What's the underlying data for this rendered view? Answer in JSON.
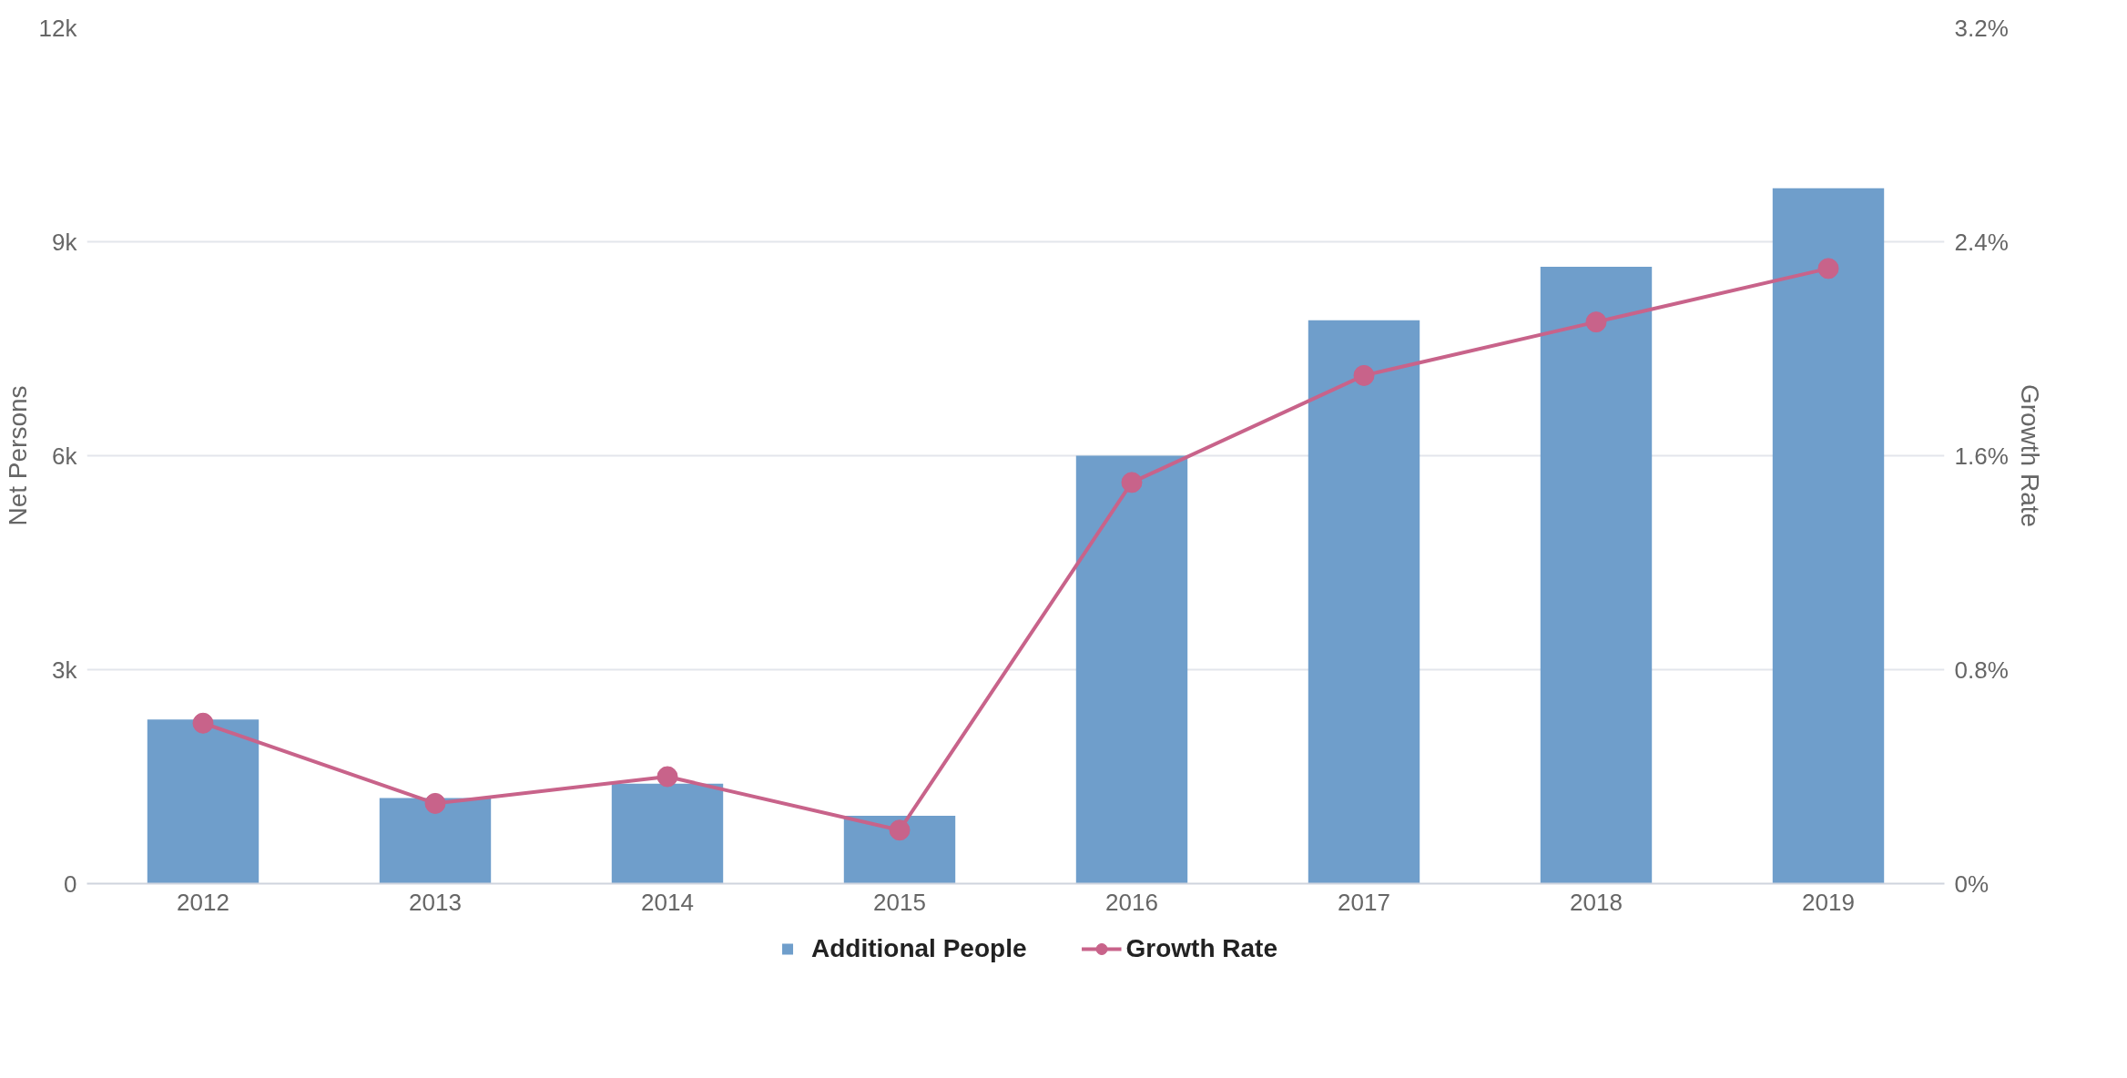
{
  "chart_data": {
    "type": "bar",
    "categories": [
      "2012",
      "2013",
      "2014",
      "2015",
      "2016",
      "2017",
      "2018",
      "2019"
    ],
    "ylabel": "Net Persons",
    "y2label": "Growth Rate",
    "series": [
      {
        "name": "Additional People",
        "color": "#6f9ecb",
        "values": [
          2300,
          1200,
          1400,
          950,
          6000,
          7900,
          8650,
          9750
        ]
      },
      {
        "name": "Growth Rate",
        "type": "line",
        "axis": "y2",
        "color": "#c8638a",
        "marker": "circle",
        "values": [
          0.6,
          0.3,
          0.4,
          0.2,
          1.5,
          1.9,
          2.1,
          2.3
        ]
      }
    ],
    "ylim": [
      0,
      12000
    ],
    "yticks": [
      {
        "value": 0,
        "label": "0"
      },
      {
        "value": 3000,
        "label": "3k"
      },
      {
        "value": 6000,
        "label": "6k"
      },
      {
        "value": 9000,
        "label": "9k"
      },
      {
        "value": 12000,
        "label": "12k"
      }
    ],
    "y2lim": [
      0,
      3.2
    ],
    "y2ticks": [
      {
        "value": 0,
        "label": "0%"
      },
      {
        "value": 0.8,
        "label": "0.8%"
      },
      {
        "value": 1.6,
        "label": "1.6%"
      },
      {
        "value": 2.4,
        "label": "2.4%"
      },
      {
        "value": 3.2,
        "label": "3.2%"
      }
    ],
    "grid": "y",
    "legend": "bottom"
  }
}
